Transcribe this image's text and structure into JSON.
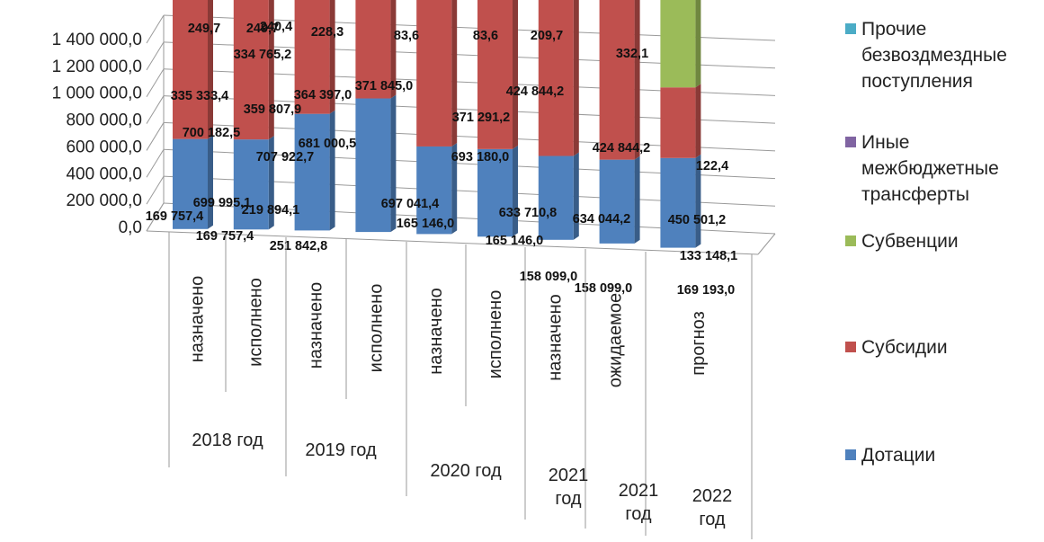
{
  "chart_data": {
    "type": "bar",
    "stacked": true,
    "title": "",
    "xlabel": "",
    "ylabel": "",
    "ylim": [
      0,
      1400000
    ],
    "y_ticks": [
      "0,0",
      "200 000,0",
      "400 000,0",
      "600 000,0",
      "800 000,0",
      "1 000 000,0",
      "1 200 000,0",
      "1 400 000,0"
    ],
    "grid": true,
    "legend_position": "right",
    "categories": [
      "назначено",
      "исполнено",
      "назначено",
      "исполнено",
      "назначено",
      "исполнено",
      "назначено",
      "ожидаемое",
      "прогноз"
    ],
    "groups": [
      {
        "label": "2018 год",
        "span": 2
      },
      {
        "label": "2019 год",
        "span": 2
      },
      {
        "label": "2020 год",
        "span": 2
      },
      {
        "label": "2021 год",
        "span": 1
      },
      {
        "label": "2021 год",
        "span": 1
      },
      {
        "label": "2022 год",
        "span": 1
      }
    ],
    "series": [
      {
        "name": "Дотации",
        "color": "#4F81BD",
        "values": [
          169757.4,
          169757.4,
          219894.1,
          251842.8,
          165146.0,
          165146.0,
          158099.0,
          158099.0,
          169193.0
        ],
        "labels": [
          "169 757,4",
          "169 757,4",
          "219 894,1",
          "251 842,8",
          "165 146,0",
          "165 146,0",
          "158 099,0",
          "158 099,0",
          "169 193,0"
        ]
      },
      {
        "name": "Субсидии",
        "color": "#C0504D",
        "values": [
          700182.5,
          699995.1,
          707922.7,
          681000.5,
          697041.4,
          693180.0,
          633710.8,
          634044.2,
          133148.1
        ],
        "labels": [
          "700 182,5",
          "699 995,1",
          "707 922,7",
          "681 000,5",
          "697 041,4",
          "693 180,0",
          "633 710,8",
          "634 044,2",
          "133 148,1"
        ]
      },
      {
        "name": "Субвенции",
        "color": "#9BBB59",
        "values": [
          335333.4,
          334765.2,
          359807.9,
          364397.0,
          371845.0,
          371291.2,
          424844.2,
          424844.2,
          450501.2
        ],
        "labels": [
          "335 333,4",
          "334 765,2",
          "359 807,9",
          "364 397,0",
          "371 845,0",
          "371 291,2",
          "424 844,2",
          "424 844,2",
          "450 501,2"
        ]
      },
      {
        "name": "Иные межбюджетные трансферты",
        "color": "#8064A2",
        "values": [
          0,
          0,
          0,
          0,
          0,
          0,
          0,
          0,
          0
        ],
        "labels": [
          "",
          "",
          "",
          "",
          "",
          "",
          "",
          "",
          ""
        ]
      },
      {
        "name": "Прочие безвоздмездные поступления",
        "color": "#4BACC6",
        "values": [
          249.7,
          249.7,
          240.4,
          228.3,
          83.6,
          83.6,
          209.7,
          332.1,
          122.4
        ],
        "labels": [
          "249,7",
          "249,7",
          "240,4",
          "228,3",
          "83,6",
          "83,6",
          "209,7",
          "332,1",
          "122,4"
        ]
      }
    ]
  },
  "legend": {
    "items": [
      {
        "name": "Прочие безвоздмездные поступления",
        "color": "#4BACC6"
      },
      {
        "name": "Иные межбюджетные трансферты",
        "color": "#8064A2"
      },
      {
        "name": "Субвенции",
        "color": "#9BBB59"
      },
      {
        "name": "Субсидии",
        "color": "#C0504D"
      },
      {
        "name": "Дотации",
        "color": "#4F81BD"
      }
    ]
  }
}
